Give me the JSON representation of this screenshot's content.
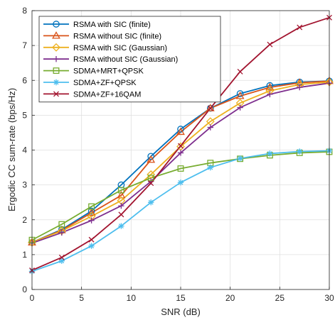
{
  "chart_data": {
    "type": "line",
    "title": "",
    "xlabel": "SNR (dB)",
    "ylabel": "Ergodic CC sum-rate (bps/Hz)",
    "xlim": [
      0,
      30
    ],
    "ylim": [
      0,
      8
    ],
    "xticks": [
      0,
      5,
      10,
      15,
      20,
      25,
      30
    ],
    "yticks": [
      0,
      1,
      2,
      3,
      4,
      5,
      6,
      7,
      8
    ],
    "grid": true,
    "legend_position": "top-left",
    "x": [
      0,
      3,
      6,
      9,
      12,
      15,
      18,
      21,
      24,
      27,
      30
    ],
    "series": [
      {
        "name": "RSMA with SIC (finite)",
        "color": "#0072BD",
        "marker": "circle",
        "values": [
          1.35,
          1.72,
          2.25,
          3.0,
          3.82,
          4.6,
          5.2,
          5.62,
          5.85,
          5.95,
          5.98
        ]
      },
      {
        "name": "RSMA without SIC (finite)",
        "color": "#D95319",
        "marker": "triangle",
        "values": [
          1.35,
          1.7,
          2.2,
          2.7,
          3.72,
          4.52,
          5.2,
          5.55,
          5.8,
          5.93,
          5.98
        ]
      },
      {
        "name": "RSMA with SIC (Gaussian)",
        "color": "#EDB120",
        "marker": "diamond",
        "values": [
          1.35,
          1.68,
          2.1,
          2.55,
          3.3,
          4.1,
          4.82,
          5.35,
          5.7,
          5.88,
          5.95
        ]
      },
      {
        "name": "RSMA without SIC (Gaussian)",
        "color": "#7E2F8E",
        "marker": "plus",
        "values": [
          1.33,
          1.63,
          1.98,
          2.4,
          3.1,
          3.92,
          4.65,
          5.22,
          5.6,
          5.8,
          5.92
        ]
      },
      {
        "name": "SDMA+MRT+QPSK",
        "color": "#77AC30",
        "marker": "square",
        "values": [
          1.42,
          1.87,
          2.38,
          2.85,
          3.2,
          3.47,
          3.63,
          3.75,
          3.85,
          3.92,
          3.95
        ]
      },
      {
        "name": "SDMA+ZF+QPSK",
        "color": "#4DBEEE",
        "marker": "asterisk",
        "values": [
          0.52,
          0.82,
          1.25,
          1.82,
          2.5,
          3.07,
          3.5,
          3.76,
          3.9,
          3.96,
          3.98
        ]
      },
      {
        "name": "SDMA+ZF+16QAM",
        "color": "#A2142F",
        "marker": "cross",
        "values": [
          0.55,
          0.92,
          1.43,
          2.15,
          3.05,
          4.12,
          5.2,
          6.25,
          7.03,
          7.52,
          7.8
        ]
      }
    ]
  }
}
